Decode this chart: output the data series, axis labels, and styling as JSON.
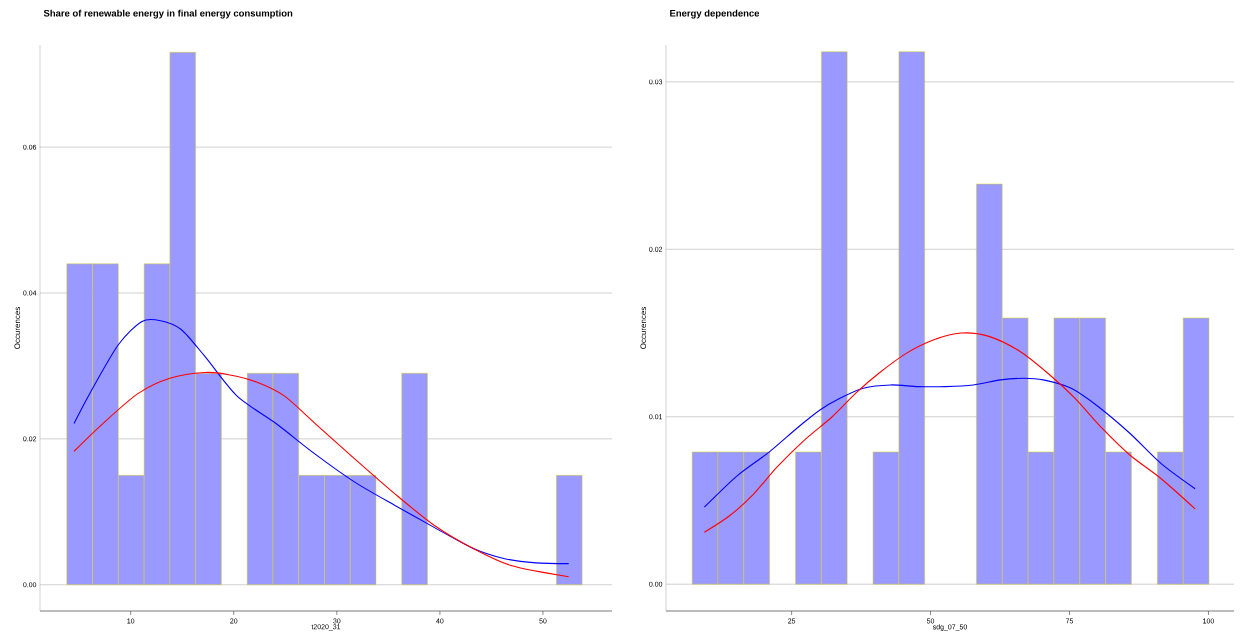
{
  "chart_data": [
    {
      "type": "histogram",
      "title": "Share of renewable energy in final energy consumption",
      "xlabel": "t2020_31",
      "ylabel": "Occurences",
      "bins": [
        3.8,
        6.3,
        8.8,
        11.3,
        13.8,
        16.3,
        18.8,
        21.3,
        23.8,
        26.3,
        28.8,
        31.3,
        33.8,
        36.3,
        38.8,
        41.3,
        43.8,
        46.3,
        48.8,
        51.3,
        53.8
      ],
      "series": [
        {
          "color": "#9999ff",
          "values": [
            0.044,
            0.044,
            0.015,
            0.044,
            0.073,
            0.029,
            0,
            0.029,
            0.029,
            0.015,
            0.015,
            0.015,
            0,
            0.029,
            0,
            0,
            0,
            0,
            0,
            0.015
          ]
        },
        {
          "type": "line",
          "color": "#0000ff",
          "x": [
            4.5,
            6.1,
            8.8,
            11.1,
            12.9,
            14.9,
            17.2,
            20.3,
            24.1,
            27.9,
            31.7,
            35.6,
            39.4,
            43.2,
            46.2,
            49.3,
            52.5
          ],
          "values": [
            0.0221,
            0.0264,
            0.0329,
            0.0361,
            0.0362,
            0.035,
            0.0313,
            0.0259,
            0.0221,
            0.0179,
            0.0141,
            0.0109,
            0.0079,
            0.005,
            0.0036,
            0.003,
            0.0029
          ]
        },
        {
          "type": "line",
          "color": "#ff0000",
          "x": [
            4.5,
            7.3,
            10.7,
            13.8,
            17.2,
            19.5,
            22.2,
            24.9,
            27.9,
            31.7,
            35.6,
            39.4,
            43.2,
            47.0,
            52.5
          ],
          "values": [
            0.0183,
            0.0221,
            0.0262,
            0.0283,
            0.0291,
            0.0288,
            0.0278,
            0.0259,
            0.0221,
            0.0173,
            0.0125,
            0.0082,
            0.005,
            0.0026,
            0.0011
          ]
        }
      ],
      "xlim": [
        1.2,
        56.7
      ],
      "ylim": [
        -0.0036,
        0.074
      ],
      "xticks": [
        10,
        20,
        30,
        40,
        50
      ],
      "yticks": [
        {
          "value": 0,
          "label": "0.00"
        },
        0.02,
        0.04,
        0.06
      ],
      "grid": "y"
    },
    {
      "type": "histogram",
      "title": "Energy dependence",
      "xlabel": "sdg_07_50",
      "ylabel": "Occurences",
      "bins": [
        7.1,
        11.75,
        16.4,
        21.05,
        25.7,
        30.35,
        35.0,
        39.65,
        44.3,
        48.95,
        53.6,
        58.25,
        62.9,
        67.55,
        72.2,
        76.85,
        81.5,
        86.15,
        90.8,
        95.45,
        100.1
      ],
      "series": [
        {
          "color": "#9999ff",
          "values": [
            0.0079,
            0.0079,
            0.0079,
            0,
            0.0079,
            0.0318,
            0,
            0.0079,
            0.0318,
            0,
            0,
            0.0239,
            0.0159,
            0.0079,
            0.0159,
            0.0159,
            0.0079,
            0,
            0.0079,
            0.0159
          ]
        },
        {
          "type": "line",
          "color": "#0000ff",
          "x": [
            9.3,
            15.3,
            21.0,
            25.9,
            30.1,
            33.7,
            37.9,
            42.8,
            47.8,
            52.7,
            57.7,
            62.6,
            66.8,
            70.3,
            75.3,
            80.2,
            85.9,
            91.5,
            97.6
          ],
          "values": [
            0.0046,
            0.0065,
            0.0079,
            0.0093,
            0.0104,
            0.0111,
            0.0117,
            0.0119,
            0.0118,
            0.0118,
            0.0119,
            0.0122,
            0.0123,
            0.0122,
            0.0117,
            0.0106,
            0.009,
            0.0072,
            0.0057
          ]
        },
        {
          "type": "line",
          "color": "#ff0000",
          "x": [
            9.3,
            13.9,
            18.2,
            22.4,
            27.3,
            32.3,
            36.5,
            40.7,
            45.7,
            50.6,
            55.5,
            60.5,
            66.1,
            71.1,
            76.0,
            80.9,
            85.9,
            91.5,
            97.6
          ],
          "values": [
            0.0031,
            0.0041,
            0.0054,
            0.007,
            0.0086,
            0.01,
            0.0114,
            0.0126,
            0.0138,
            0.0146,
            0.015,
            0.0148,
            0.0139,
            0.0126,
            0.0111,
            0.0093,
            0.0077,
            0.0063,
            0.0045
          ]
        }
      ],
      "xlim": [
        2.4,
        104.6
      ],
      "ylim": [
        -0.0016,
        0.0322
      ],
      "xticks": [
        25,
        50,
        75,
        100
      ],
      "yticks": [
        {
          "value": 0,
          "label": "0.00"
        },
        0.01,
        0.02,
        0.03
      ],
      "grid": "y"
    }
  ]
}
